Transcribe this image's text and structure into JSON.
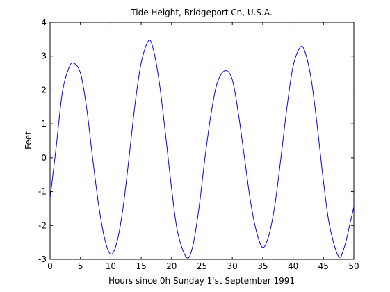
{
  "chart_data": {
    "type": "line",
    "title": "Tide Height, Bridgeport Cn, U.S.A.",
    "xlabel": "Hours since 0h Sunday 1'st September 1991",
    "ylabel": "Feet",
    "xlim": [
      0,
      50
    ],
    "ylim": [
      -3,
      4
    ],
    "x_ticks": [
      0,
      5,
      10,
      15,
      20,
      25,
      30,
      35,
      40,
      45,
      50
    ],
    "y_ticks": [
      -3,
      -2,
      -1,
      0,
      1,
      2,
      3,
      4
    ],
    "grid": false,
    "series": [
      {
        "color": "#0000ff",
        "x": [
          0,
          1,
          2,
          3,
          3.8,
          5,
          6,
          7,
          8,
          9,
          10,
          11,
          12,
          13,
          14,
          15,
          16.2,
          17,
          18,
          19,
          20,
          21,
          22.5,
          23.5,
          24.5,
          25.5,
          26.5,
          27.5,
          28.8,
          30,
          31,
          32,
          33,
          34,
          35,
          36,
          37,
          38,
          39,
          40,
          41.2,
          42,
          43,
          44,
          45,
          46,
          47.5,
          48.5,
          49.3,
          50
        ],
        "y": [
          -1.2,
          0.3,
          1.9,
          2.6,
          2.8,
          2.5,
          1.5,
          0.0,
          -1.4,
          -2.4,
          -2.85,
          -2.5,
          -1.5,
          0.0,
          1.6,
          2.8,
          3.45,
          3.2,
          2.2,
          0.7,
          -0.9,
          -2.2,
          -2.95,
          -2.6,
          -1.5,
          0.0,
          1.3,
          2.2,
          2.57,
          2.3,
          1.3,
          0.0,
          -1.3,
          -2.2,
          -2.65,
          -2.3,
          -1.4,
          0.0,
          1.5,
          2.7,
          3.27,
          3.1,
          2.3,
          0.9,
          -0.7,
          -2.0,
          -2.92,
          -2.6,
          -2.0,
          -1.45
        ]
      }
    ]
  }
}
